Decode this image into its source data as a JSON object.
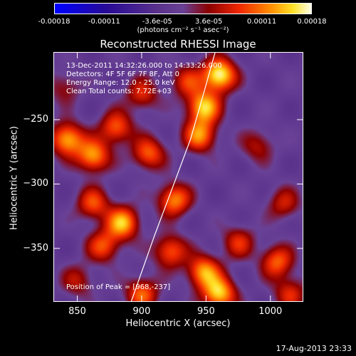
{
  "chart_data": {
    "type": "heatmap",
    "title": "Reconstructed RHESSI Image",
    "xlabel": "Heliocentric X (arcsec)",
    "ylabel": "Heliocentric Y (arcsec)",
    "xlim": [
      832,
      1025
    ],
    "ylim": [
      -391,
      -198
    ],
    "x_ticks": [
      "850",
      "900",
      "950",
      "1000"
    ],
    "x_tick_values": [
      850,
      900,
      950,
      1000
    ],
    "y_ticks": [
      "-250",
      "-300",
      "-350"
    ],
    "y_tick_values": [
      -250,
      -300,
      -350
    ],
    "colorbar": {
      "ticks": [
        "-0.00018",
        "-0.00011",
        "-3.6e-05",
        "3.6e-05",
        "0.00011",
        "0.00018"
      ],
      "tick_values": [
        -0.00018,
        -0.00011,
        -3.6e-05,
        3.6e-05,
        0.00011,
        0.00018
      ],
      "range": [
        -0.00018,
        0.00018
      ],
      "units": "(photons cm⁻² s⁻¹ asec⁻²)"
    },
    "info_lines": [
      "13-Dec-2011 14:32:26.000 to 14:33:26.000",
      "Detectors: 4F 5F 6F 7F 8F, Att 0",
      "Energy Range: 12.0 - 25.0 keV",
      "Clean    Total counts: 7.72E+03"
    ],
    "peak_label": "Position of Peak = [968,-237]",
    "peak": [
      968,
      -237
    ],
    "blobs": [
      {
        "x": 960,
        "y": -215,
        "v": 1.0
      },
      {
        "x": 948,
        "y": -240,
        "v": 0.85
      },
      {
        "x": 945,
        "y": -262,
        "v": 0.7
      },
      {
        "x": 842,
        "y": -265,
        "v": 0.8
      },
      {
        "x": 862,
        "y": -278,
        "v": 0.75
      },
      {
        "x": 880,
        "y": -256,
        "v": 0.6
      },
      {
        "x": 905,
        "y": -276,
        "v": 0.6
      },
      {
        "x": 925,
        "y": -312,
        "v": 0.7
      },
      {
        "x": 885,
        "y": -330,
        "v": 0.8
      },
      {
        "x": 862,
        "y": -315,
        "v": 0.55
      },
      {
        "x": 870,
        "y": -348,
        "v": 0.55
      },
      {
        "x": 922,
        "y": -352,
        "v": 0.6
      },
      {
        "x": 948,
        "y": -368,
        "v": 0.75
      },
      {
        "x": 960,
        "y": -385,
        "v": 0.85
      },
      {
        "x": 900,
        "y": -385,
        "v": 0.6
      },
      {
        "x": 1005,
        "y": -360,
        "v": 0.6
      },
      {
        "x": 975,
        "y": -345,
        "v": 0.45
      },
      {
        "x": 1010,
        "y": -315,
        "v": 0.4
      },
      {
        "x": 990,
        "y": -270,
        "v": 0.35
      },
      {
        "x": 935,
        "y": -220,
        "v": 0.45
      },
      {
        "x": 900,
        "y": -230,
        "v": 0.45
      },
      {
        "x": 850,
        "y": -375,
        "v": 0.35
      },
      {
        "x": 1015,
        "y": -385,
        "v": 0.45
      },
      {
        "x": 840,
        "y": -225,
        "v": 0.3
      }
    ],
    "limb_points": [
      [
        957,
        -198
      ],
      [
        948,
        -230
      ],
      [
        938,
        -265
      ],
      [
        925,
        -300
      ],
      [
        910,
        -340
      ],
      [
        892,
        -391
      ]
    ]
  },
  "timestamp": "17-Aug-2013 23:33"
}
